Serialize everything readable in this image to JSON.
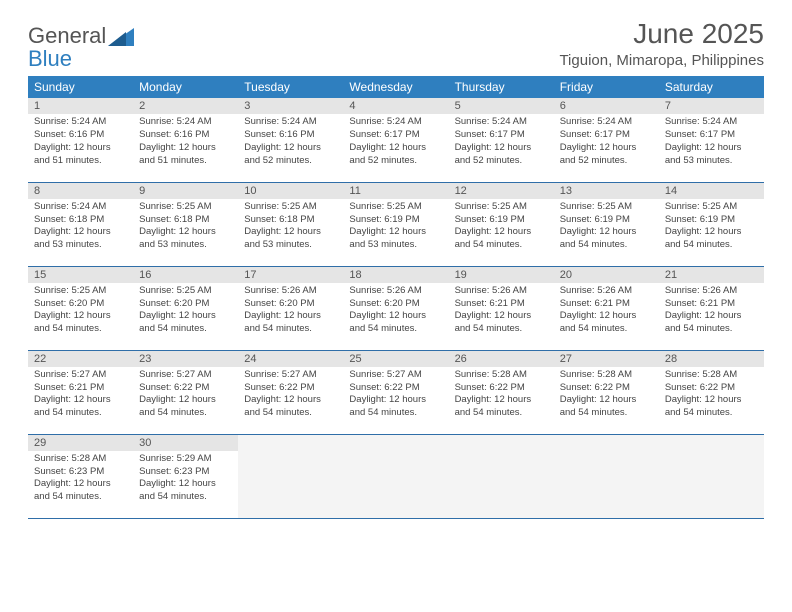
{
  "brand": {
    "part1": "General",
    "part2": "Blue"
  },
  "title": "June 2025",
  "location": "Tiguion, Mimaropa, Philippines",
  "colors": {
    "header_bg": "#2f7fbf",
    "header_text": "#ffffff",
    "daynum_bg": "#e5e5e5",
    "border": "#2f6ea8",
    "brand_blue": "#2f7fbf",
    "text": "#555"
  },
  "weekdays": [
    "Sunday",
    "Monday",
    "Tuesday",
    "Wednesday",
    "Thursday",
    "Friday",
    "Saturday"
  ],
  "days": [
    {
      "n": "1",
      "sr": "5:24 AM",
      "ss": "6:16 PM",
      "dl": "12 hours and 51 minutes."
    },
    {
      "n": "2",
      "sr": "5:24 AM",
      "ss": "6:16 PM",
      "dl": "12 hours and 51 minutes."
    },
    {
      "n": "3",
      "sr": "5:24 AM",
      "ss": "6:16 PM",
      "dl": "12 hours and 52 minutes."
    },
    {
      "n": "4",
      "sr": "5:24 AM",
      "ss": "6:17 PM",
      "dl": "12 hours and 52 minutes."
    },
    {
      "n": "5",
      "sr": "5:24 AM",
      "ss": "6:17 PM",
      "dl": "12 hours and 52 minutes."
    },
    {
      "n": "6",
      "sr": "5:24 AM",
      "ss": "6:17 PM",
      "dl": "12 hours and 52 minutes."
    },
    {
      "n": "7",
      "sr": "5:24 AM",
      "ss": "6:17 PM",
      "dl": "12 hours and 53 minutes."
    },
    {
      "n": "8",
      "sr": "5:24 AM",
      "ss": "6:18 PM",
      "dl": "12 hours and 53 minutes."
    },
    {
      "n": "9",
      "sr": "5:25 AM",
      "ss": "6:18 PM",
      "dl": "12 hours and 53 minutes."
    },
    {
      "n": "10",
      "sr": "5:25 AM",
      "ss": "6:18 PM",
      "dl": "12 hours and 53 minutes."
    },
    {
      "n": "11",
      "sr": "5:25 AM",
      "ss": "6:19 PM",
      "dl": "12 hours and 53 minutes."
    },
    {
      "n": "12",
      "sr": "5:25 AM",
      "ss": "6:19 PM",
      "dl": "12 hours and 54 minutes."
    },
    {
      "n": "13",
      "sr": "5:25 AM",
      "ss": "6:19 PM",
      "dl": "12 hours and 54 minutes."
    },
    {
      "n": "14",
      "sr": "5:25 AM",
      "ss": "6:19 PM",
      "dl": "12 hours and 54 minutes."
    },
    {
      "n": "15",
      "sr": "5:25 AM",
      "ss": "6:20 PM",
      "dl": "12 hours and 54 minutes."
    },
    {
      "n": "16",
      "sr": "5:25 AM",
      "ss": "6:20 PM",
      "dl": "12 hours and 54 minutes."
    },
    {
      "n": "17",
      "sr": "5:26 AM",
      "ss": "6:20 PM",
      "dl": "12 hours and 54 minutes."
    },
    {
      "n": "18",
      "sr": "5:26 AM",
      "ss": "6:20 PM",
      "dl": "12 hours and 54 minutes."
    },
    {
      "n": "19",
      "sr": "5:26 AM",
      "ss": "6:21 PM",
      "dl": "12 hours and 54 minutes."
    },
    {
      "n": "20",
      "sr": "5:26 AM",
      "ss": "6:21 PM",
      "dl": "12 hours and 54 minutes."
    },
    {
      "n": "21",
      "sr": "5:26 AM",
      "ss": "6:21 PM",
      "dl": "12 hours and 54 minutes."
    },
    {
      "n": "22",
      "sr": "5:27 AM",
      "ss": "6:21 PM",
      "dl": "12 hours and 54 minutes."
    },
    {
      "n": "23",
      "sr": "5:27 AM",
      "ss": "6:22 PM",
      "dl": "12 hours and 54 minutes."
    },
    {
      "n": "24",
      "sr": "5:27 AM",
      "ss": "6:22 PM",
      "dl": "12 hours and 54 minutes."
    },
    {
      "n": "25",
      "sr": "5:27 AM",
      "ss": "6:22 PM",
      "dl": "12 hours and 54 minutes."
    },
    {
      "n": "26",
      "sr": "5:28 AM",
      "ss": "6:22 PM",
      "dl": "12 hours and 54 minutes."
    },
    {
      "n": "27",
      "sr": "5:28 AM",
      "ss": "6:22 PM",
      "dl": "12 hours and 54 minutes."
    },
    {
      "n": "28",
      "sr": "5:28 AM",
      "ss": "6:22 PM",
      "dl": "12 hours and 54 minutes."
    },
    {
      "n": "29",
      "sr": "5:28 AM",
      "ss": "6:23 PM",
      "dl": "12 hours and 54 minutes."
    },
    {
      "n": "30",
      "sr": "5:29 AM",
      "ss": "6:23 PM",
      "dl": "12 hours and 54 minutes."
    }
  ],
  "labels": {
    "sunrise": "Sunrise: ",
    "sunset": "Sunset: ",
    "daylight": "Daylight: "
  },
  "layout": {
    "first_weekday_index": 0,
    "weeks": 5
  }
}
